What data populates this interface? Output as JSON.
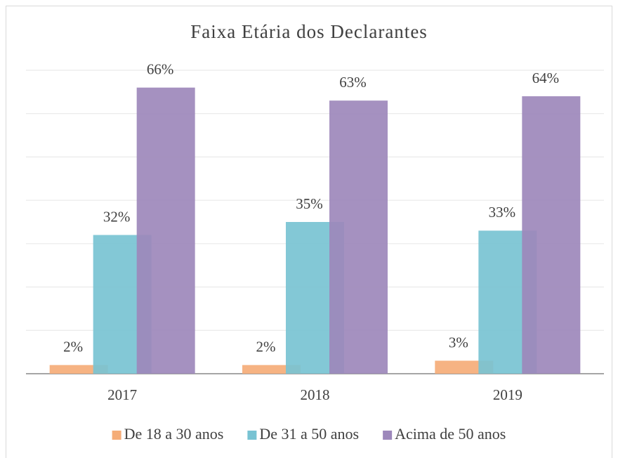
{
  "chart_data": {
    "type": "bar",
    "title": "Faixa Etária dos Declarantes",
    "categories": [
      "2017",
      "2018",
      "2019"
    ],
    "series": [
      {
        "name": "De 18 a 30 anos",
        "color": "#f5ad78",
        "values": [
          2,
          2,
          3
        ],
        "value_labels": [
          "2%",
          "2%",
          "3%"
        ]
      },
      {
        "name": "De 31 a 50 anos",
        "color": "#78c3d3",
        "values": [
          32,
          35,
          33
        ],
        "value_labels": [
          "32%",
          "35%",
          "33%"
        ]
      },
      {
        "name": "Acima de 50 anos",
        "color": "#9d88bb",
        "values": [
          66,
          63,
          64
        ],
        "value_labels": [
          "66%",
          "63%",
          "64%"
        ]
      }
    ],
    "ylim": [
      0,
      70
    ],
    "yticks": [
      0,
      10,
      20,
      30,
      40,
      50,
      60,
      70
    ],
    "grid": true,
    "legend": "bottom"
  }
}
